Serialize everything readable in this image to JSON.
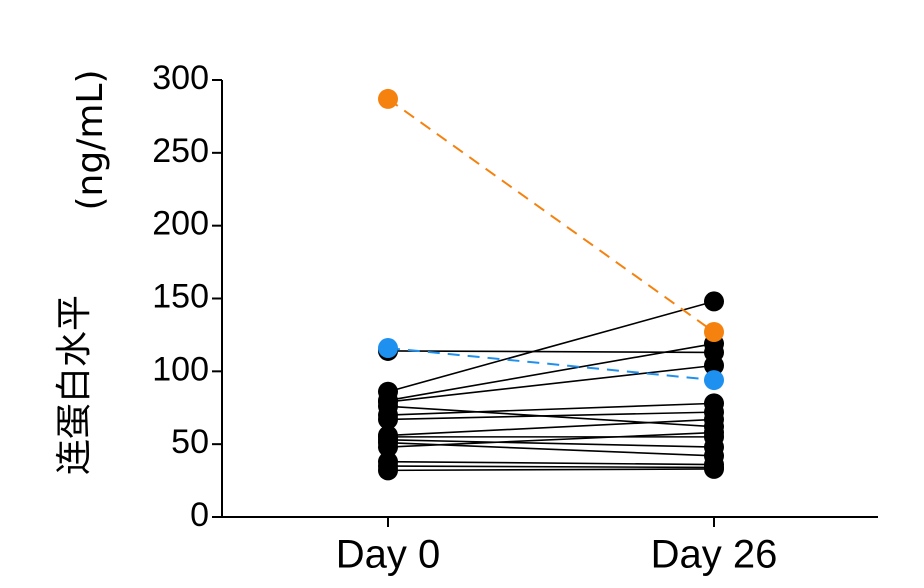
{
  "chart_data": {
    "type": "line",
    "categories": [
      "Day 0",
      "Day 26"
    ],
    "ylabel_name": "连蛋白水平",
    "ylabel_unit": "(ng/mL)",
    "ylim": [
      0,
      300
    ],
    "yticks": [
      0,
      50,
      100,
      150,
      200,
      250,
      300
    ],
    "grid": false,
    "highlight_colors": {
      "orange": "#F5820F",
      "blue": "#1E90F0",
      "default": "#000000"
    },
    "series": [
      {
        "values": [
          287,
          127
        ],
        "color": "#F5820F",
        "dashed": true
      },
      {
        "values": [
          116,
          94
        ],
        "color": "#1E90F0",
        "dashed": true
      },
      {
        "values": [
          114,
          113
        ],
        "color": "#000000",
        "dashed": false
      },
      {
        "values": [
          86,
          148
        ],
        "color": "#000000",
        "dashed": false
      },
      {
        "values": [
          80,
          119
        ],
        "color": "#000000",
        "dashed": false
      },
      {
        "values": [
          79,
          104
        ],
        "color": "#000000",
        "dashed": false
      },
      {
        "values": [
          76,
          62
        ],
        "color": "#000000",
        "dashed": false
      },
      {
        "values": [
          70,
          78
        ],
        "color": "#000000",
        "dashed": false
      },
      {
        "values": [
          67,
          72
        ],
        "color": "#000000",
        "dashed": false
      },
      {
        "values": [
          56,
          67
        ],
        "color": "#000000",
        "dashed": false
      },
      {
        "values": [
          55,
          55
        ],
        "color": "#000000",
        "dashed": false
      },
      {
        "values": [
          53,
          48
        ],
        "color": "#000000",
        "dashed": false
      },
      {
        "values": [
          51,
          42
        ],
        "color": "#000000",
        "dashed": false
      },
      {
        "values": [
          48,
          58
        ],
        "color": "#000000",
        "dashed": false
      },
      {
        "values": [
          38,
          36
        ],
        "color": "#000000",
        "dashed": false
      },
      {
        "values": [
          35,
          34
        ],
        "color": "#000000",
        "dashed": false
      },
      {
        "values": [
          32,
          33
        ],
        "color": "#000000",
        "dashed": false
      }
    ]
  }
}
